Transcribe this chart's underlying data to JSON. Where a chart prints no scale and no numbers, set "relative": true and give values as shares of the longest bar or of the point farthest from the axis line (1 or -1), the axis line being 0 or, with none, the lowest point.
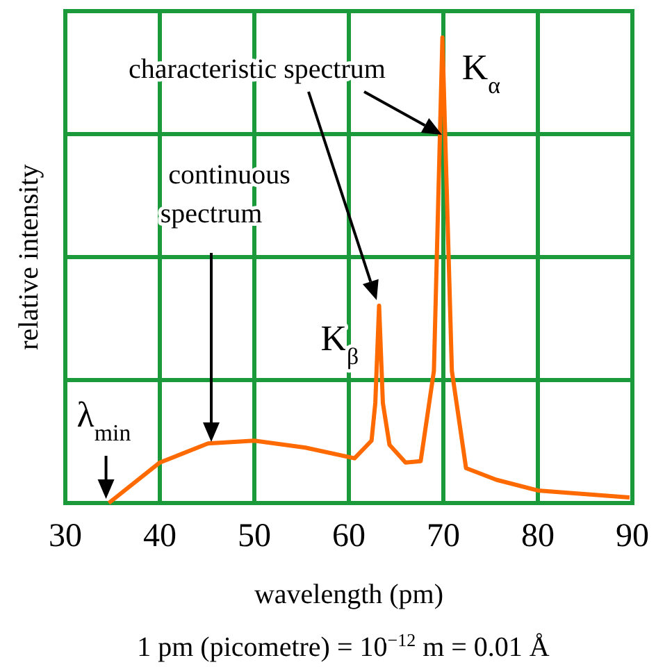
{
  "chart_data": {
    "type": "line",
    "relative": true,
    "xlabel": "wavelength (pm)",
    "ylabel": "relative intensity",
    "xlim": [
      30,
      90
    ],
    "xticks": [
      30,
      40,
      50,
      60,
      70,
      80,
      90
    ],
    "grid": true,
    "marker": "none",
    "line_style": "solid",
    "series": [
      {
        "color": "#ff6a00",
        "x": [
          34.6,
          40,
          45.1,
          50,
          55.4,
          60.6,
          62.4,
          62.8,
          63.2,
          63.6,
          64.3,
          66,
          67.6,
          69,
          69.9,
          70.9,
          72.4,
          75.6,
          80,
          89.7
        ],
        "values": [
          0,
          0.087,
          0.128,
          0.134,
          0.119,
          0.096,
          0.134,
          0.215,
          0.424,
          0.215,
          0.125,
          0.087,
          0.09,
          0.284,
          1,
          0.284,
          0.075,
          0.05,
          0.027,
          0.012
        ]
      }
    ],
    "annotations": [
      "characteristic spectrum",
      "continuous spectrum",
      {
        "text": "K$_{α}$",
        "x": 69.9,
        "y": 1
      },
      {
        "text": "K$_{β}$",
        "x": 63.2,
        "y": 0.424
      },
      {
        "text": "λ$_{min}$",
        "x": 34.6,
        "y": 0
      },
      "1 pm (picometre) = 10$^{−12}$ m = 0.01 Å"
    ]
  }
}
